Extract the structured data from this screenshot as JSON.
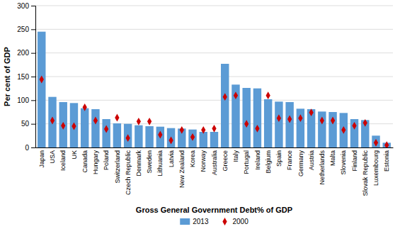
{
  "chart_data": {
    "type": "bar",
    "categories": [
      "Japan",
      "USA",
      "Iceland",
      "UK",
      "Canada",
      "Hungary",
      "Poland",
      "Switzerland",
      "Czech Republic",
      "Denmark",
      "Sweden",
      "Lithuania",
      "Latvia",
      "New Zealand",
      "Korea",
      "Norway",
      "Australia",
      "Greece",
      "Italy",
      "Portugal",
      "Ireland",
      "Belgium",
      "Spain",
      "France",
      "Germany",
      "Austria",
      "Netherlands",
      "Malta",
      "Slovenia",
      "Finland",
      "Slovak Republic",
      "Luxembourg",
      "Estonia"
    ],
    "series": [
      {
        "name": "2013",
        "type": "bar",
        "color": "#5B9BD5",
        "values": [
          245,
          107,
          96,
          94,
          83,
          81,
          60,
          51,
          50,
          47,
          45,
          44,
          41,
          40,
          38,
          33,
          33,
          177,
          133,
          126,
          125,
          102,
          97,
          96,
          82,
          81,
          76,
          75,
          73,
          60,
          58,
          25,
          10
        ]
      },
      {
        "name": "2000",
        "type": "scatter",
        "marker": "diamond",
        "color": "#CC0000",
        "values": [
          144,
          57,
          46,
          45,
          85,
          57,
          39,
          63,
          20,
          55,
          55,
          27,
          15,
          37,
          22,
          37,
          40,
          107,
          110,
          50,
          40,
          110,
          62,
          60,
          62,
          74,
          57,
          57,
          37,
          46,
          52,
          10,
          5
        ]
      }
    ],
    "xlabel": "Gross General Government Debt% of GDP",
    "ylabel": "Per cent of GDP",
    "ylim": [
      0,
      300
    ],
    "yticks": [
      0,
      50,
      100,
      150,
      200,
      250,
      300
    ],
    "grid": true,
    "legend": "bottom"
  }
}
